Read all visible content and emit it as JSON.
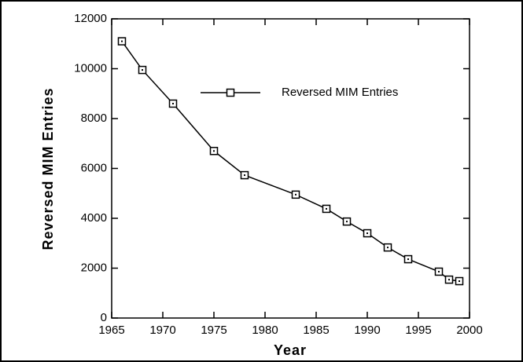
{
  "chart_data": {
    "type": "line",
    "x_label": "Year",
    "y_label": "Reversed MIM  Entries",
    "x": [
      1966,
      1968,
      1971,
      1975,
      1978,
      1983,
      1986,
      1988,
      1990,
      1992,
      1994,
      1997,
      1998,
      1999
    ],
    "series": [
      {
        "name": "Reversed MIM Entries",
        "color": "#000000",
        "values": [
          11100,
          9950,
          8600,
          6700,
          5730,
          4950,
          4380,
          3870,
          3400,
          2830,
          2360,
          1860,
          1540,
          1480
        ]
      }
    ],
    "xlim": [
      1965,
      2000
    ],
    "xticks": [
      1965,
      1970,
      1975,
      1980,
      1985,
      1990,
      1995,
      2000
    ],
    "ylim": [
      0,
      12000
    ],
    "yticks": [
      0,
      2000,
      4000,
      6000,
      8000,
      10000,
      12000
    ],
    "grid": false,
    "legend": "upper right"
  }
}
